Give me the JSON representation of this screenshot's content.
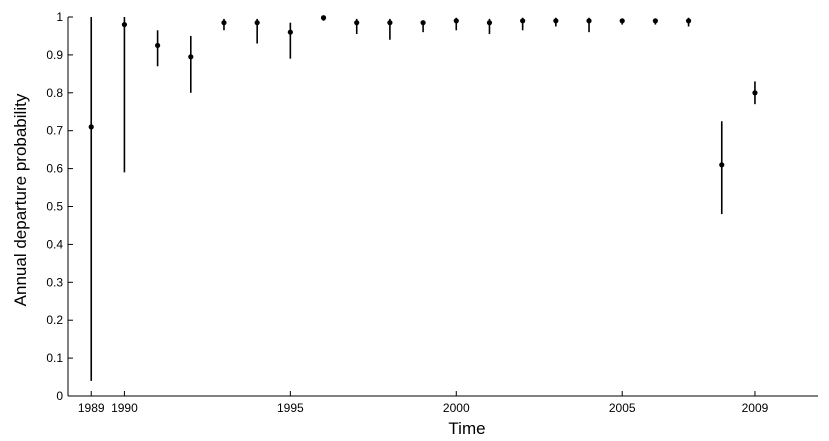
{
  "chart_data": {
    "type": "scatter",
    "xlabel": "Time",
    "ylabel": "Annual departure probability",
    "xlim": [
      1988.3,
      2010.9
    ],
    "ylim": [
      0,
      1
    ],
    "xticks": [
      {
        "value": 1989,
        "label": "1989"
      },
      {
        "value": 1990,
        "label": "1990"
      },
      {
        "value": 1995,
        "label": "1995"
      },
      {
        "value": 2000,
        "label": "2000"
      },
      {
        "value": 2005,
        "label": "2005"
      },
      {
        "value": 2009,
        "label": "2009"
      }
    ],
    "yticks": [
      {
        "value": 0,
        "label": "0"
      },
      {
        "value": 0.1,
        "label": "0.1"
      },
      {
        "value": 0.2,
        "label": "0.2"
      },
      {
        "value": 0.3,
        "label": "0.3"
      },
      {
        "value": 0.4,
        "label": "0.4"
      },
      {
        "value": 0.5,
        "label": "0.5"
      },
      {
        "value": 0.6,
        "label": "0.6"
      },
      {
        "value": 0.7,
        "label": "0.7"
      },
      {
        "value": 0.8,
        "label": "0.8"
      },
      {
        "value": 0.9,
        "label": "0.9"
      },
      {
        "value": 1,
        "label": "1"
      }
    ],
    "grid": false,
    "points": [
      {
        "x": 1989,
        "y": 0.71,
        "low": 0.04,
        "high": 1.0
      },
      {
        "x": 1990,
        "y": 0.98,
        "low": 0.59,
        "high": 1.0
      },
      {
        "x": 1991,
        "y": 0.925,
        "low": 0.87,
        "high": 0.965
      },
      {
        "x": 1992,
        "y": 0.895,
        "low": 0.8,
        "high": 0.95
      },
      {
        "x": 1993,
        "y": 0.985,
        "low": 0.965,
        "high": 0.995
      },
      {
        "x": 1994,
        "y": 0.985,
        "low": 0.93,
        "high": 0.995
      },
      {
        "x": 1995,
        "y": 0.96,
        "low": 0.89,
        "high": 0.985
      },
      {
        "x": 1996,
        "y": 0.998,
        "low": 0.99,
        "high": 1.0
      },
      {
        "x": 1997,
        "y": 0.985,
        "low": 0.955,
        "high": 0.995
      },
      {
        "x": 1998,
        "y": 0.985,
        "low": 0.94,
        "high": 0.995
      },
      {
        "x": 1999,
        "y": 0.985,
        "low": 0.96,
        "high": 0.99
      },
      {
        "x": 2000,
        "y": 0.99,
        "low": 0.965,
        "high": 0.998
      },
      {
        "x": 2001,
        "y": 0.985,
        "low": 0.955,
        "high": 0.995
      },
      {
        "x": 2002,
        "y": 0.99,
        "low": 0.965,
        "high": 0.998
      },
      {
        "x": 2003,
        "y": 0.99,
        "low": 0.975,
        "high": 0.998
      },
      {
        "x": 2004,
        "y": 0.99,
        "low": 0.96,
        "high": 0.998
      },
      {
        "x": 2005,
        "y": 0.99,
        "low": 0.98,
        "high": 0.995
      },
      {
        "x": 2006,
        "y": 0.99,
        "low": 0.98,
        "high": 0.995
      },
      {
        "x": 2007,
        "y": 0.99,
        "low": 0.975,
        "high": 0.998
      },
      {
        "x": 2008,
        "y": 0.61,
        "low": 0.48,
        "high": 0.725
      },
      {
        "x": 2009,
        "y": 0.8,
        "low": 0.77,
        "high": 0.83
      }
    ]
  }
}
